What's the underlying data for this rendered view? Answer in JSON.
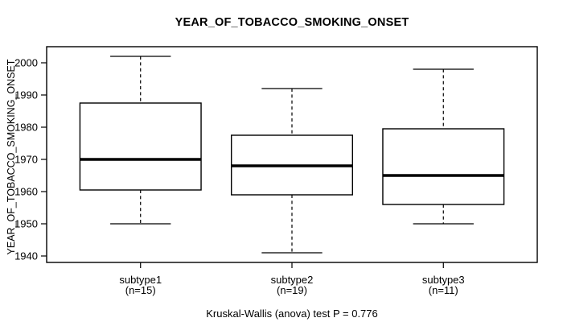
{
  "title": "YEAR_OF_TOBACCO_SMOKING_ONSET",
  "colors": {
    "background": "#ffffff",
    "line": "#000000",
    "text": "#000000",
    "box_fill": "#ffffff"
  },
  "chart_data": {
    "type": "boxplot",
    "title": "YEAR_OF_TOBACCO_SMOKING_ONSET",
    "ylabel": "YEAR_OF_TOBACCO_SMOKING_ONSET",
    "xlabel": "",
    "ylim": [
      1938,
      2005
    ],
    "yticks": [
      1940,
      1950,
      1960,
      1970,
      1980,
      1990,
      2000
    ],
    "grid": false,
    "legend": "none",
    "categories": [
      "subtype1",
      "subtype2",
      "subtype3"
    ],
    "series": [
      {
        "name": "subtype1",
        "n_label": "(n=15)",
        "n": 15,
        "whisker_low": 1950,
        "q1": 1960.5,
        "median": 1970,
        "q3": 1987.5,
        "whisker_high": 2002,
        "outliers": []
      },
      {
        "name": "subtype2",
        "n_label": "(n=19)",
        "n": 19,
        "whisker_low": 1941,
        "q1": 1959,
        "median": 1968,
        "q3": 1977.5,
        "whisker_high": 1992,
        "outliers": []
      },
      {
        "name": "subtype3",
        "n_label": "(n=11)",
        "n": 11,
        "whisker_low": 1950,
        "q1": 1956,
        "median": 1965,
        "q3": 1979.5,
        "whisker_high": 1998,
        "outliers": []
      }
    ],
    "footnote": "Kruskal-Wallis (anova) test P = 0.776"
  }
}
